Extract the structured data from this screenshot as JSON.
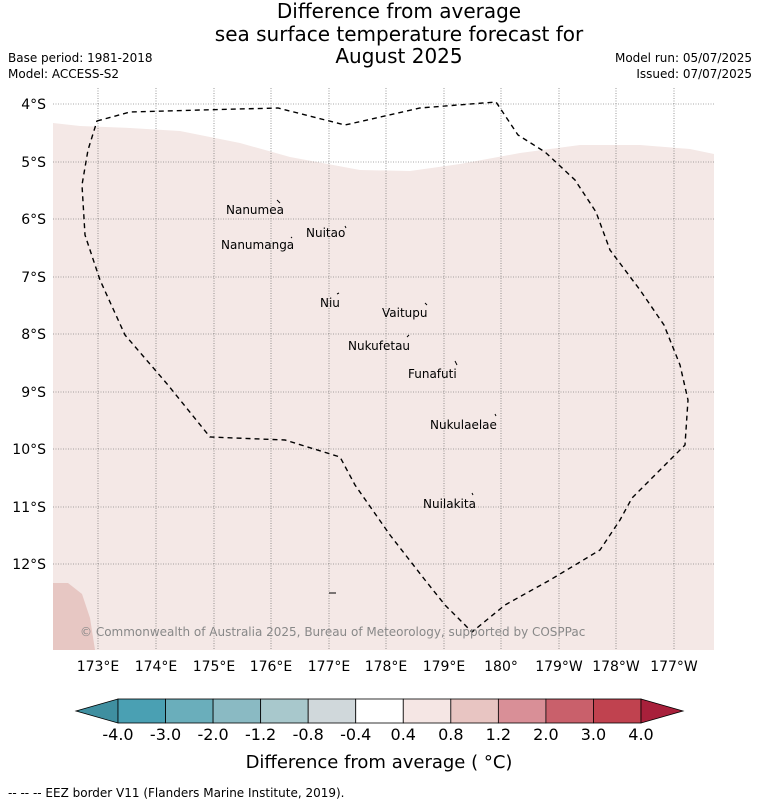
{
  "title": {
    "line1": "Difference from average",
    "line2": "sea surface temperature forecast for",
    "line3": "August 2025"
  },
  "meta": {
    "base_period": "Base period: 1981-2018",
    "model": "Model: ACCESS-S2",
    "model_run": "Model run: 05/07/2025",
    "issued": "Issued: 07/07/2025"
  },
  "lat_labels": [
    "4°S",
    "5°S",
    "6°S",
    "7°S",
    "8°S",
    "9°S",
    "10°S",
    "11°S",
    "12°S"
  ],
  "lon_labels": [
    "173°E",
    "174°E",
    "175°E",
    "176°E",
    "177°E",
    "178°E",
    "179°E",
    "180°",
    "179°W",
    "178°W",
    "177°W"
  ],
  "islands": [
    "Nanumea",
    "Nuitao",
    "Nanumanga",
    "Niu",
    "Vaitupu",
    "Nukufetau",
    "Funafuti",
    "Nukulaelae",
    "Nuilakita"
  ],
  "copyright": "© Commonwealth of Australia 2025, Bureau of Meteorology, supported by COSPPac",
  "colorbar": {
    "ticks": [
      "-4.0",
      "-3.0",
      "-2.0",
      "-1.2",
      "-0.8",
      "-0.4",
      "0.4",
      "0.8",
      "1.2",
      "2.0",
      "3.0",
      "4.0"
    ],
    "colors": [
      "#3f8fa0",
      "#4aa0b3",
      "#6aaebb",
      "#8abac3",
      "#a8c8cc",
      "#d0d8db",
      "#ffffff",
      "#f5e6e4",
      "#e8c5c2",
      "#d98f97",
      "#c9606b",
      "#c0424f",
      "#a8203b"
    ],
    "label": "Difference from average ( °C)"
  },
  "footer": "-- -- -- EEZ border V11 (Flanders Marine Institute, 2019)."
}
